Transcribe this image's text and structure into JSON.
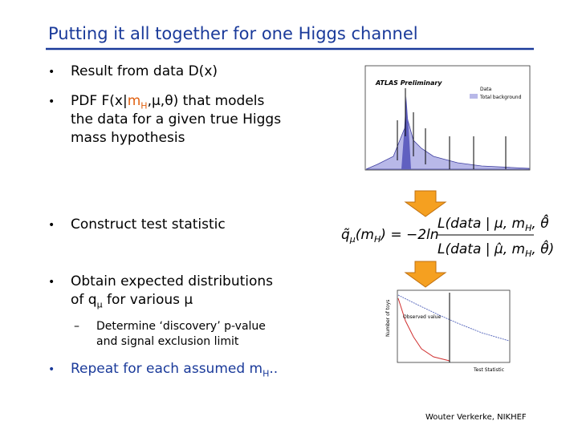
{
  "slide": {
    "title": "Putting it all together for one Higgs channel",
    "bullet1": "Result from data D(x)",
    "bullet2": {
      "a": "PDF F(x|",
      "m": "m",
      "sub": "H",
      "b": ",μ,θ) that models",
      "line2": "the data for a given true Higgs",
      "line3": "mass hypothesis"
    },
    "bullet3": "Construct test statistic",
    "bullet4": {
      "line1": "Obtain expected distributions",
      "a": "of q",
      "sub": "μ",
      "b": " for various μ"
    },
    "subbullet": {
      "line1": "Determine ‘discovery’ p-value",
      "line2": "and signal exclusion limit"
    },
    "bullet5": {
      "a": "Repeat for each assumed m",
      "sub": "H",
      "b": ".."
    },
    "formula": {
      "lhs": "q̃",
      "lhs_sub": "μ",
      "lhs_arg": "(m",
      "lhs_arg_sub": "H",
      "lhs_end": ") = −2ln",
      "num": "L(data | μ, m",
      "num_sub": "H",
      "num_end": ", θ̂̂",
      "den": "L(data | μ̂, m",
      "den_sub": "H",
      "den_end": ", θ̂)"
    },
    "plot1": {
      "experiment": "ATLAS Preliminary",
      "legend_data": "Data",
      "legend_bkg": "Total background"
    },
    "plot2": {
      "annotation": "Observed value",
      "xlabel": "Test Statistic",
      "ylabel": "Number of toys"
    },
    "footer": "Wouter Verkerke, NIKHEF"
  }
}
